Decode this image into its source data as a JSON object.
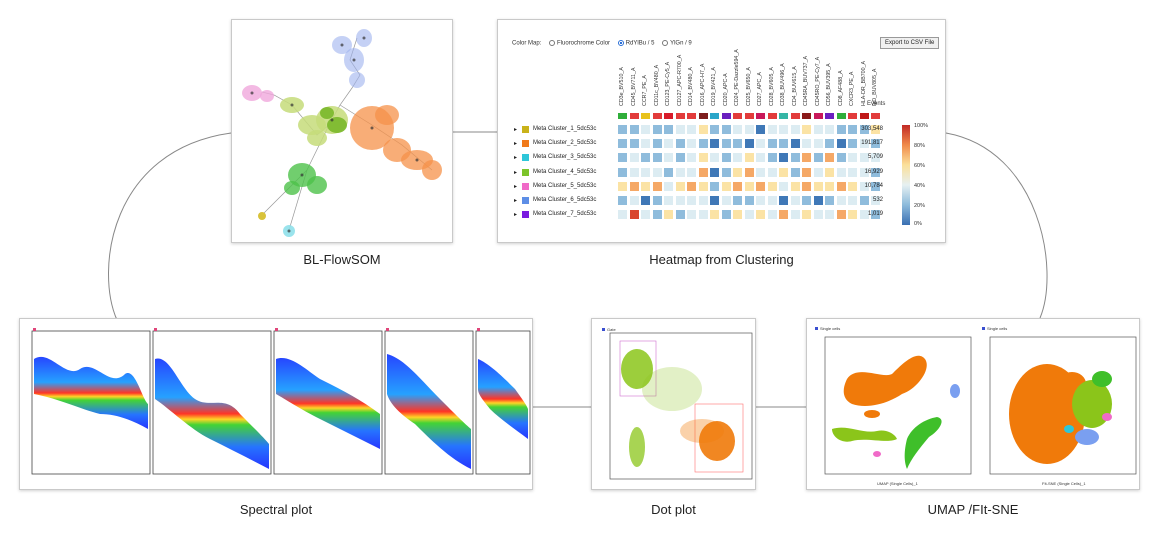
{
  "captions": {
    "flowsom": "BL-FlowSOM",
    "heatmap": "Heatmap from Clustering",
    "spectral": "Spectral plot",
    "dot": "Dot plot",
    "umap": "UMAP /FIt-SNE"
  },
  "heatmap": {
    "color_map_label": "Color Map:",
    "options": [
      "Fluorochrome Color",
      "RdYlBu / 5",
      "YlGn / 9"
    ],
    "selected_option": "RdYlBu / 5",
    "export_label": "Export to CSV File",
    "events_header": "Events",
    "columns": [
      "CD3e_BV510_A",
      "CD45_BV711_A",
      "CCR7_PE_A",
      "CD11c_BV480_A",
      "CD123_PE-Cy5_A",
      "CD127_APC-R700_A",
      "CD14_BV480_A",
      "CD16_APC-H7_A",
      "CD19_BV421_A",
      "CD20_APC-A",
      "CD24_PE-Dazzle594_A",
      "CD25_BV650_A",
      "CD27_APC_A",
      "CD28_BV605_A",
      "CD38_BUV496_A",
      "CD4_BUV615_A",
      "CD45RA_BUV737_A",
      "CD45RO_PE-Cy7_A",
      "CD56_BUV395_A",
      "CD8_AF488_A",
      "CXCR3_PE_A",
      "HLA-DR_BB700_A",
      "IgD_BUV805_A"
    ],
    "col_colors": [
      "#2fae3a",
      "#e23b3b",
      "#e8c21b",
      "#e23b3b",
      "#d81b2a",
      "#e23b3b",
      "#e23b3b",
      "#7d1d1d",
      "#2aa6c9",
      "#6a1fbf",
      "#e23b3b",
      "#e23b3b",
      "#c9185a",
      "#e23b3b",
      "#35b6a6",
      "#e23b3b",
      "#8b1a1a",
      "#c9185a",
      "#6a1fbf",
      "#2fae3a",
      "#e23b3b",
      "#c01818",
      "#e23b3b"
    ],
    "rows": [
      {
        "label": "Meta Cluster_1_5dc53c",
        "color": "#c9b21a",
        "events": "303,548",
        "vals": [
          2,
          2,
          3,
          2,
          2,
          3,
          3,
          4,
          2,
          2,
          3,
          3,
          1,
          3,
          3,
          3,
          4,
          3,
          3,
          2,
          2,
          2,
          4
        ]
      },
      {
        "label": "Meta Cluster_2_5dc53c",
        "color": "#f07a1a",
        "events": "191,817",
        "vals": [
          2,
          2,
          3,
          2,
          3,
          2,
          3,
          2,
          1,
          2,
          2,
          1,
          3,
          2,
          2,
          1,
          3,
          3,
          2,
          1,
          2,
          3,
          2
        ]
      },
      {
        "label": "Meta Cluster_3_5dc53c",
        "color": "#2ec6d9",
        "events": "5,709",
        "vals": [
          2,
          3,
          2,
          2,
          3,
          2,
          3,
          4,
          3,
          2,
          3,
          4,
          3,
          2,
          1,
          2,
          5,
          2,
          5,
          2,
          3,
          3,
          3
        ]
      },
      {
        "label": "Meta Cluster_4_5dc53c",
        "color": "#7cc42a",
        "events": "16,929",
        "vals": [
          2,
          3,
          3,
          3,
          2,
          3,
          3,
          5,
          1,
          2,
          4,
          5,
          3,
          3,
          4,
          2,
          5,
          3,
          4,
          3,
          3,
          3,
          2
        ]
      },
      {
        "label": "Meta Cluster_5_5dc53c",
        "color": "#f06ac8",
        "events": "10,784",
        "vals": [
          4,
          5,
          4,
          5,
          3,
          4,
          5,
          4,
          2,
          4,
          5,
          4,
          5,
          4,
          3,
          4,
          5,
          4,
          4,
          5,
          4,
          3,
          2
        ]
      },
      {
        "label": "Meta Cluster_6_5dc53c",
        "color": "#5d8ee6",
        "events": "532",
        "vals": [
          2,
          3,
          1,
          2,
          3,
          3,
          3,
          3,
          1,
          3,
          2,
          2,
          3,
          3,
          1,
          3,
          2,
          1,
          2,
          3,
          3,
          2,
          3
        ]
      },
      {
        "label": "Meta Cluster_7_5dc53c",
        "color": "#7a1ae0",
        "events": "1,019",
        "vals": [
          3,
          6,
          3,
          2,
          4,
          2,
          3,
          3,
          4,
          2,
          4,
          3,
          4,
          3,
          5,
          3,
          4,
          3,
          3,
          5,
          4,
          3,
          2
        ]
      }
    ],
    "legend_labels": [
      "100%",
      "80%",
      "60%",
      "40%",
      "20%",
      "0%"
    ]
  },
  "umap": {
    "left_legend": "Single cells",
    "right_legend": "Single cells",
    "left_xlabel": "UMAP (Single Cells)_1",
    "right_xlabel": "FIt-SNE (Single Cells)_1"
  },
  "dot": {
    "legend": "Gate"
  }
}
